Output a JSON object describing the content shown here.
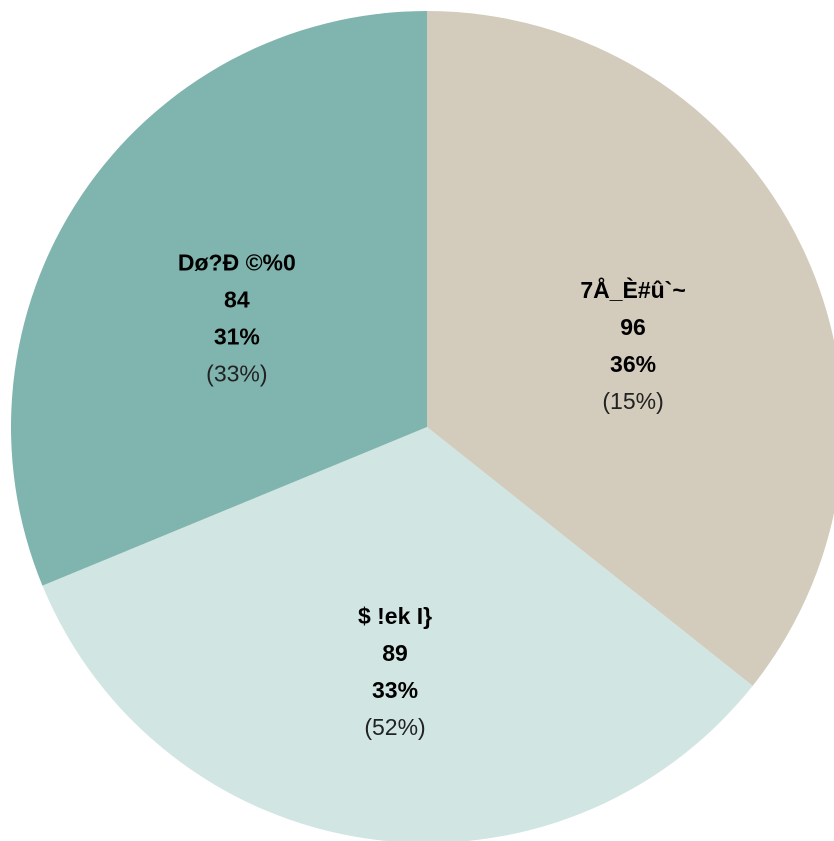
{
  "chart_data": {
    "type": "pie",
    "categories": [
      "7Å_È#û`~",
      "$ !ek I}",
      "Dø?Ð ©%0"
    ],
    "values": [
      96,
      89,
      84
    ],
    "percent_labels": [
      "36%",
      "33%",
      "31%"
    ],
    "extra_labels": [
      "(15%)",
      "(52%)",
      "(33%)"
    ],
    "colors": [
      "#d3cbbb",
      "#d1e5e3",
      "#7fb5ae"
    ]
  }
}
